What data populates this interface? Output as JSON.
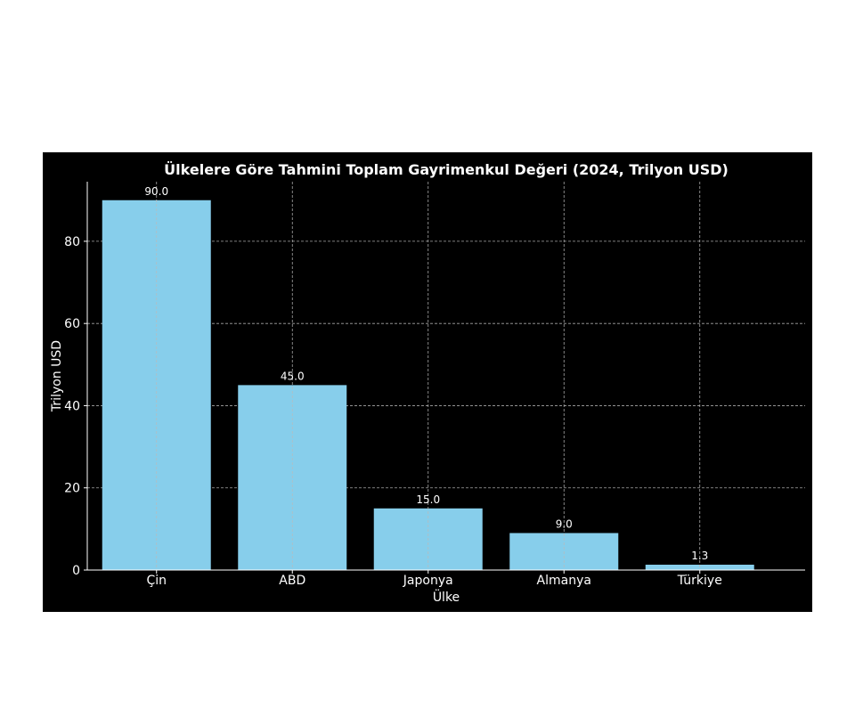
{
  "chart_data": {
    "type": "bar",
    "title": "Ülkelere Göre Tahmini Toplam Gayrimenkul Değeri (2024, Trilyon USD)",
    "xlabel": "Ülke",
    "ylabel": "Trilyon USD",
    "categories": [
      "Çin",
      "ABD",
      "Japonya",
      "Almanya",
      "Türkiye"
    ],
    "values": [
      90.0,
      45.0,
      15.0,
      9.0,
      1.3
    ],
    "value_labels": [
      "90.0",
      "45.0",
      "15.0",
      "9.0",
      "1.3"
    ],
    "yticks": [
      0,
      20,
      40,
      60,
      80
    ],
    "ylim": [
      0,
      94.5
    ],
    "grid": true,
    "bar_color": "#87CEEB",
    "background": "#000000",
    "text_color": "#ffffff"
  }
}
